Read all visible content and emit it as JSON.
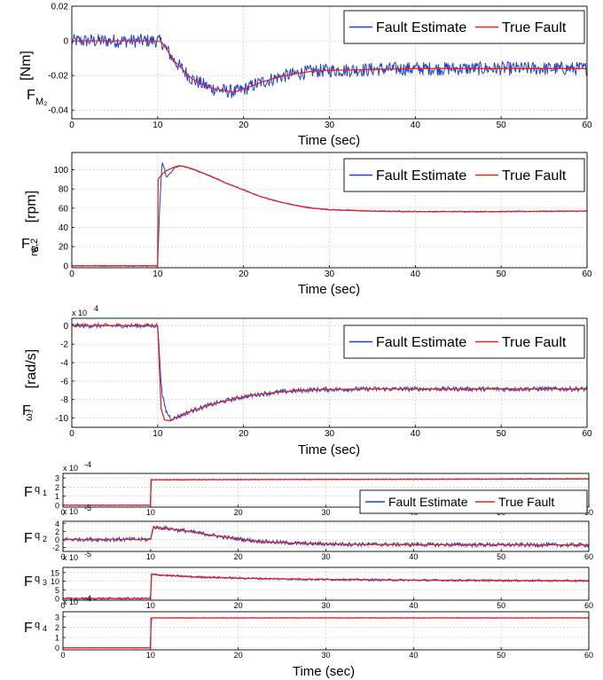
{
  "figure": {
    "x_label": "Time (sec)",
    "x_ticks": [
      "0",
      "10",
      "20",
      "30",
      "40",
      "50",
      "60"
    ]
  },
  "legend": {
    "estimate": "Fault Estimate",
    "true": "True Fault"
  },
  "colors": {
    "estimate": "#1f3fe0",
    "true": "#e8251b"
  },
  "panels": [
    {
      "id": "p1",
      "ylabel_main": "F",
      "ylabel_sub": "M₂",
      "ylabel_unit": "[Nm]",
      "multiplier": "",
      "y_ticks": [
        "0.02",
        "0",
        "-0.02",
        "-0.04"
      ]
    },
    {
      "id": "p2",
      "ylabel_main": "F",
      "ylabel_sub": "ω",
      "ylabel_sub2": "rw,2",
      "ylabel_unit": "[rpm]",
      "multiplier": "",
      "y_ticks": [
        "100",
        "80",
        "60",
        "40",
        "20",
        "0"
      ]
    },
    {
      "id": "p3",
      "ylabel_main": "F",
      "ylabel_sub": "ω₃",
      "ylabel_unit": "[rad/s]",
      "multiplier": "x 10",
      "multiplier_exp": "4",
      "y_ticks": [
        "0",
        "-2",
        "-4",
        "-6",
        "-8",
        "-10"
      ]
    },
    {
      "id": "p4",
      "ylabel_main": "F",
      "ylabel_sub": "q",
      "ylabel_sub2": "1",
      "multiplier": "x 10",
      "multiplier_exp": "-4",
      "y_ticks": [
        "3",
        "2",
        "1",
        "0"
      ]
    },
    {
      "id": "p5",
      "ylabel_main": "F",
      "ylabel_sub": "q",
      "ylabel_sub2": "2",
      "multiplier": "x 10",
      "multiplier_exp": "-5",
      "y_ticks": [
        "4",
        "2",
        "0",
        "-2"
      ]
    },
    {
      "id": "p6",
      "ylabel_main": "F",
      "ylabel_sub": "q",
      "ylabel_sub2": "3",
      "multiplier": "x 10",
      "multiplier_exp": "-5",
      "y_ticks": [
        "15",
        "10",
        "5",
        "0"
      ]
    },
    {
      "id": "p7",
      "ylabel_main": "F",
      "ylabel_sub": "q",
      "ylabel_sub2": "4",
      "multiplier": "x 10",
      "multiplier_exp": "-4",
      "y_ticks": [
        "3",
        "2",
        "1",
        "0"
      ]
    }
  ],
  "chart_data": [
    {
      "type": "line",
      "xlabel": "Time (sec)",
      "ylabel": "F_M2 [Nm]",
      "xlim": [
        0,
        60
      ],
      "ylim": [
        -0.045,
        0.02
      ],
      "grid": true,
      "legend_position": "top-right",
      "series": [
        {
          "name": "True Fault",
          "x": [
            0,
            10,
            10.5,
            12,
            14,
            16,
            18,
            19,
            20,
            22,
            24,
            26,
            28,
            30,
            35,
            40,
            45,
            50,
            55,
            60
          ],
          "values": [
            0,
            0,
            -0.001,
            -0.012,
            -0.022,
            -0.027,
            -0.029,
            -0.0295,
            -0.028,
            -0.024,
            -0.021,
            -0.019,
            -0.0175,
            -0.017,
            -0.0165,
            -0.016,
            -0.016,
            -0.016,
            -0.016,
            -0.016
          ]
        },
        {
          "name": "Fault Estimate",
          "x": [
            0,
            10,
            10.5,
            12,
            14,
            16,
            18,
            19,
            20,
            22,
            24,
            26,
            28,
            30,
            35,
            40,
            45,
            50,
            55,
            60
          ],
          "values": [
            0,
            0,
            -0.001,
            -0.012,
            -0.022,
            -0.027,
            -0.029,
            -0.0295,
            -0.028,
            -0.024,
            -0.021,
            -0.019,
            -0.0175,
            -0.017,
            -0.0165,
            -0.016,
            -0.016,
            -0.016,
            -0.016,
            -0.016
          ],
          "noise_amplitude": 0.004
        }
      ]
    },
    {
      "type": "line",
      "xlabel": "Time (sec)",
      "ylabel": "F_ω rw,2 [rpm]",
      "xlim": [
        0,
        60
      ],
      "ylim": [
        -2,
        118
      ],
      "grid": true,
      "legend_position": "top-right",
      "series": [
        {
          "name": "True Fault",
          "x": [
            0,
            10,
            10.05,
            10.3,
            10.6,
            11,
            12,
            12.5,
            13,
            14,
            16,
            18,
            20,
            22,
            24,
            26,
            28,
            30,
            35,
            40,
            50,
            60
          ],
          "values": [
            0,
            0,
            90,
            93,
            96,
            99,
            103,
            104,
            103.5,
            101,
            94,
            86,
            79,
            72,
            67,
            63,
            60,
            58.5,
            57,
            56.5,
            56.5,
            57
          ]
        },
        {
          "name": "Fault Estimate",
          "x": [
            0,
            10,
            10.2,
            10.5,
            10.8,
            11,
            11.5,
            12,
            12.5,
            13,
            14,
            16,
            18,
            20,
            22,
            24,
            26,
            28,
            30,
            35,
            40,
            50,
            60
          ],
          "values": [
            0,
            0,
            55,
            108,
            101,
            92,
            97,
            102,
            104,
            103.5,
            101,
            94,
            86,
            79,
            72,
            67,
            63,
            60,
            58.5,
            57,
            56.5,
            56.5,
            57
          ],
          "noise_amplitude": 0.6
        }
      ]
    },
    {
      "type": "line",
      "xlabel": "Time (sec)",
      "ylabel": "F_ω3 [rad/s]",
      "xlim": [
        0,
        60
      ],
      "ylim": [
        -11,
        0.8
      ],
      "y_multiplier": "x 10^4",
      "grid": true,
      "legend_position": "top-right",
      "series": [
        {
          "name": "True Fault",
          "x": [
            0,
            10,
            10.4,
            10.8,
            11.5,
            12,
            13,
            14,
            16,
            18,
            20,
            22,
            24,
            26,
            28,
            30,
            35,
            40,
            50,
            60
          ],
          "values": [
            0,
            0,
            -9,
            -10.2,
            -10.3,
            -10.0,
            -9.6,
            -9.2,
            -8.6,
            -8.1,
            -7.7,
            -7.4,
            -7.2,
            -7.05,
            -6.95,
            -6.9,
            -6.85,
            -6.85,
            -6.85,
            -6.85
          ]
        },
        {
          "name": "Fault Estimate",
          "x": [
            0,
            10,
            10.2,
            10.5,
            11,
            11.5,
            12,
            13,
            14,
            16,
            18,
            20,
            22,
            24,
            26,
            28,
            30,
            35,
            40,
            50,
            60
          ],
          "values": [
            0,
            0,
            -3,
            -7.5,
            -9.3,
            -10.0,
            -10.0,
            -9.6,
            -9.2,
            -8.6,
            -8.1,
            -7.7,
            -7.4,
            -7.2,
            -7.05,
            -6.95,
            -6.9,
            -6.85,
            -6.85,
            -6.85,
            -6.85
          ],
          "noise_amplitude": 0.25
        }
      ]
    },
    {
      "type": "line",
      "xlabel": "",
      "ylabel": "F_q1",
      "xlim": [
        0,
        60
      ],
      "ylim": [
        -0.2,
        3.5
      ],
      "y_multiplier": "x 10^-4",
      "grid": true,
      "legend_position": "bottom-right",
      "series": [
        {
          "name": "True Fault",
          "x": [
            0,
            10,
            10.05,
            60
          ],
          "values": [
            0,
            0,
            2.8,
            2.9
          ]
        },
        {
          "name": "Fault Estimate",
          "x": [
            0,
            10,
            10.05,
            60
          ],
          "values": [
            0,
            0,
            2.8,
            2.9
          ],
          "noise_amplitude": 0.05
        }
      ]
    },
    {
      "type": "line",
      "xlabel": "",
      "ylabel": "F_q2",
      "xlim": [
        0,
        60
      ],
      "ylim": [
        -3,
        4.5
      ],
      "y_multiplier": "x 10^-5",
      "grid": true,
      "series": [
        {
          "name": "True Fault",
          "x": [
            0,
            10,
            10.3,
            12,
            14,
            16,
            18,
            20,
            22,
            24,
            26,
            28,
            30,
            35,
            40,
            50,
            60
          ],
          "values": [
            0,
            0,
            3.0,
            2.7,
            2.1,
            1.4,
            0.7,
            0.1,
            -0.4,
            -0.7,
            -0.9,
            -1.05,
            -1.15,
            -1.25,
            -1.3,
            -1.35,
            -1.4
          ]
        },
        {
          "name": "Fault Estimate",
          "x": [
            0,
            10,
            10.3,
            12,
            14,
            16,
            18,
            20,
            22,
            24,
            26,
            28,
            30,
            35,
            40,
            50,
            60
          ],
          "values": [
            0,
            0,
            3.0,
            2.7,
            2.1,
            1.4,
            0.7,
            0.1,
            -0.4,
            -0.7,
            -0.9,
            -1.05,
            -1.15,
            -1.25,
            -1.3,
            -1.35,
            -1.4
          ],
          "noise_amplitude": 0.5
        }
      ]
    },
    {
      "type": "line",
      "xlabel": "",
      "ylabel": "F_q3",
      "xlim": [
        0,
        60
      ],
      "ylim": [
        -1,
        18
      ],
      "y_multiplier": "x 10^-5",
      "grid": true,
      "series": [
        {
          "name": "True Fault",
          "x": [
            0,
            10,
            10.1,
            12,
            15,
            20,
            25,
            30,
            40,
            50,
            60
          ],
          "values": [
            0,
            0,
            14,
            13.3,
            12.5,
            11.8,
            11.3,
            11,
            10.6,
            10.4,
            10.2
          ]
        },
        {
          "name": "Fault Estimate",
          "x": [
            0,
            10,
            10.1,
            12,
            15,
            20,
            25,
            30,
            40,
            50,
            60
          ],
          "values": [
            0,
            0,
            14,
            13.3,
            12.5,
            11.8,
            11.3,
            11,
            10.6,
            10.4,
            10.2
          ],
          "noise_amplitude": 0.6
        }
      ]
    },
    {
      "type": "line",
      "xlabel": "Time (sec)",
      "ylabel": "F_q4",
      "xlim": [
        0,
        60
      ],
      "ylim": [
        -0.2,
        3.5
      ],
      "y_multiplier": "x 10^-4",
      "grid": true,
      "series": [
        {
          "name": "True Fault",
          "x": [
            0,
            10,
            10.05,
            60
          ],
          "values": [
            0,
            0,
            2.9,
            2.9
          ]
        },
        {
          "name": "Fault Estimate",
          "x": [
            0,
            10,
            10.05,
            60
          ],
          "values": [
            0,
            0,
            2.9,
            2.9
          ],
          "noise_amplitude": 0.03
        }
      ]
    }
  ]
}
